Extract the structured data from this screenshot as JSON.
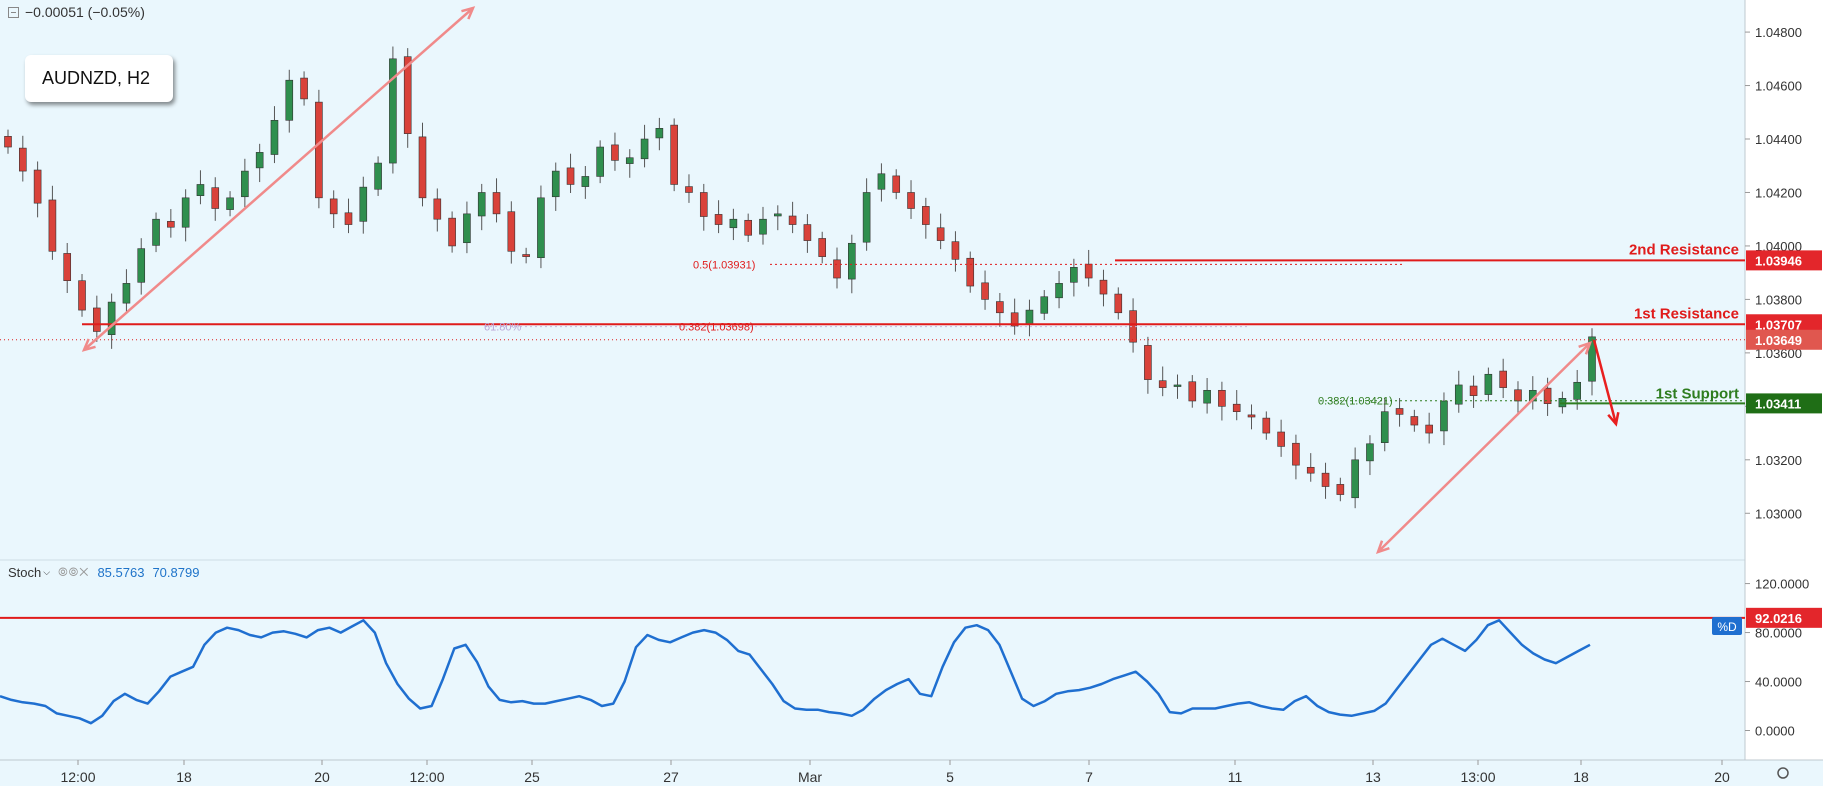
{
  "header": {
    "change_text": "−0.00051 (−0.05%)",
    "collapse_icon": "minus-square-icon",
    "symbol_label": "AUDNZD, H2"
  },
  "indicator": {
    "name": "Stoch",
    "chevron_icon": "chevron-down-icon",
    "icons_text": "⦾⦾✕",
    "k_value": "85.5763",
    "d_value": "70.8799",
    "d_tag": "%D"
  },
  "colors": {
    "background": "#eaf7fd",
    "bull": "#2f8f4e",
    "bear": "#d9423a",
    "resistance": "#e01b1b",
    "support": "#2e7d1f",
    "stoch_line": "#1f6fd0",
    "trend_arrow": "#f08a8a"
  },
  "chart_data": {
    "type": "candlestick",
    "symbol": "AUDNZD",
    "timeframe": "H2",
    "price_axis": {
      "ticks": [
        "1.04800",
        "1.04600",
        "1.04400",
        "1.04200",
        "1.04000",
        "1.03800",
        "1.03600",
        "1.03400",
        "1.03200",
        "1.03000"
      ],
      "range": [
        1.029,
        1.0492
      ]
    },
    "time_axis": {
      "ticks": [
        "12:00",
        "18",
        "20",
        "12:00",
        "25",
        "27",
        "Mar",
        "5",
        "7",
        "11",
        "13",
        "13:00",
        "18",
        "20"
      ]
    },
    "close_path": [
      1.0437,
      1.0428,
      1.0416,
      1.0398,
      1.0387,
      1.0376,
      1.0368,
      1.0379,
      1.0386,
      1.0399,
      1.041,
      1.0407,
      1.0418,
      1.0423,
      1.0414,
      1.0418,
      1.0428,
      1.0435,
      1.0447,
      1.0462,
      1.0455,
      1.0418,
      1.0412,
      1.0408,
      1.0422,
      1.0431,
      1.047,
      1.0442,
      1.0418,
      1.041,
      1.04,
      1.0412,
      1.042,
      1.0412,
      1.0398,
      1.0396,
      1.0418,
      1.0428,
      1.0423,
      1.0426,
      1.0437,
      1.0432,
      1.0433,
      1.044,
      1.0444,
      1.0423,
      1.042,
      1.0411,
      1.0408,
      1.041,
      1.0404,
      1.041,
      1.0412,
      1.0408,
      1.0402,
      1.0396,
      1.0388,
      1.0401,
      1.042,
      1.0427,
      1.042,
      1.0414,
      1.0408,
      1.0402,
      1.0395,
      1.0385,
      1.038,
      1.0375,
      1.037,
      1.0376,
      1.0381,
      1.0386,
      1.0392,
      1.0388,
      1.0382,
      1.0375,
      1.0364,
      1.035,
      1.0347,
      1.0348,
      1.0342,
      1.0346,
      1.034,
      1.0338,
      1.0336,
      1.033,
      1.0325,
      1.0318,
      1.0315,
      1.031,
      1.0307,
      1.032,
      1.0326,
      1.0338,
      1.0337,
      1.0333,
      1.033,
      1.0342,
      1.0348,
      1.0344,
      1.0352,
      1.0347,
      1.0342,
      1.0346,
      1.0341,
      1.0343,
      1.0349,
      1.0366
    ],
    "levels": [
      {
        "name": "2nd Resistance",
        "price": 1.03946,
        "label": "1.03946"
      },
      {
        "name": "1st Resistance",
        "price": 1.03707,
        "label": "1.03707"
      },
      {
        "name": "1st Support",
        "price": 1.03411,
        "label": "1.03411"
      }
    ],
    "fib_labels": [
      {
        "text": "0.5(1.03931)",
        "price": 1.03931
      },
      {
        "text": "0.382(1.03698)",
        "price": 1.03698
      },
      {
        "text": "61.80%",
        "price": 1.03698
      },
      {
        "text": "0.382(1.03421)",
        "price": 1.03421
      }
    ],
    "current_price": {
      "label": "1.03649",
      "price": 1.03649
    },
    "level_titles": {
      "r2": "2nd Resistance",
      "r1": "1st Resistance",
      "s1": "1st Support"
    },
    "stoch": {
      "axis_ticks": [
        "120.0000",
        "80.0000",
        "40.0000",
        "0.0000"
      ],
      "range": [
        -20,
        127
      ],
      "level_line": {
        "value": 92.0216,
        "label": "92.0216"
      },
      "d_series": [
        28,
        25,
        23,
        22,
        20,
        14,
        12,
        10,
        6,
        12,
        24,
        30,
        25,
        22,
        32,
        44,
        48,
        52,
        70,
        80,
        84,
        82,
        78,
        76,
        80,
        81,
        79,
        76,
        82,
        84,
        80,
        85,
        90,
        80,
        55,
        38,
        26,
        18,
        20,
        42,
        67,
        70,
        56,
        36,
        25,
        23,
        24,
        22,
        22,
        24,
        26,
        28,
        25,
        20,
        22,
        40,
        68,
        78,
        74,
        72,
        76,
        80,
        82,
        80,
        74,
        65,
        62,
        50,
        38,
        24,
        18,
        17,
        17,
        15,
        14,
        12,
        17,
        26,
        33,
        38,
        42,
        30,
        28,
        52,
        72,
        84,
        86,
        82,
        70,
        48,
        26,
        20,
        24,
        30,
        32,
        33,
        35,
        38,
        42,
        45,
        48,
        40,
        30,
        15,
        14,
        18,
        18,
        18,
        20,
        22,
        23,
        20,
        18,
        17,
        24,
        28,
        20,
        15,
        13,
        12,
        14,
        16,
        22,
        34,
        46,
        58,
        70,
        75,
        70,
        65,
        74,
        86,
        90,
        80,
        70,
        63,
        58,
        55,
        60,
        65,
        70
      ]
    }
  }
}
